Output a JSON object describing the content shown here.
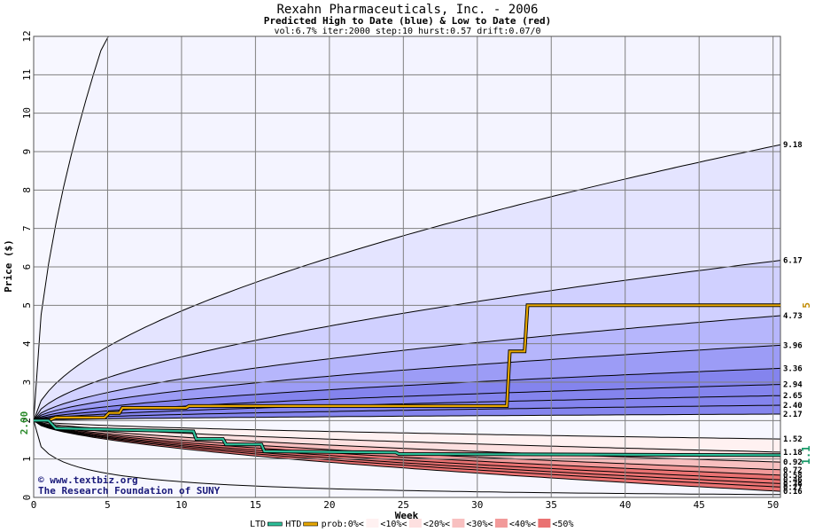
{
  "chart_data": {
    "type": "area",
    "title": "Rexahn Pharmaceuticals, Inc. - 2006",
    "subtitle": "Predicted High to Date (blue) &  Low to Date (red)",
    "params": "vol:6.7% iter:2000 step:10 hurst:0.57 drift:0.07/0",
    "xlabel": "Week",
    "ylabel": "Price ($)",
    "xlim": [
      0,
      50.5
    ],
    "ylim": [
      0,
      12
    ],
    "x_ticks": [
      0,
      5,
      10,
      15,
      20,
      25,
      30,
      35,
      40,
      45,
      50
    ],
    "y_ticks": [
      0,
      1,
      2,
      3,
      4,
      5,
      6,
      7,
      8,
      9,
      10,
      11,
      12
    ],
    "grid": true,
    "start_price": 2.0,
    "start_label": "2.00",
    "htd_current": 5,
    "htd_current_label": "5",
    "ltd_current": 1.1,
    "ltd_current_label": "1.1",
    "watermark": [
      "© www.textbiz.org",
      "The Research Foundation of SUNY"
    ],
    "high_curves": [
      {
        "end": 9.18,
        "label": "9.18"
      },
      {
        "end": 6.17,
        "label": "6.17"
      },
      {
        "end": 4.73,
        "label": "4.73"
      },
      {
        "end": 3.96,
        "label": "3.96"
      },
      {
        "end": 3.36,
        "label": "3.36"
      },
      {
        "end": 2.94,
        "label": "2.94"
      },
      {
        "end": 2.65,
        "label": "2.65"
      },
      {
        "end": 2.4,
        "label": "2.40"
      },
      {
        "end": 2.17,
        "label": "2.17"
      }
    ],
    "low_curves": [
      {
        "end": 1.52,
        "label": "1.52"
      },
      {
        "end": 1.18,
        "label": "1.18"
      },
      {
        "end": 0.92,
        "label": "0.92"
      },
      {
        "end": 0.72,
        "label": "0.72"
      },
      {
        "end": 0.58,
        "label": "0.58"
      },
      {
        "end": 0.46,
        "label": "0.46"
      },
      {
        "end": 0.36,
        "label": "0.36"
      },
      {
        "end": 0.27,
        "label": "0.27"
      },
      {
        "end": 0.16,
        "label": "0.16"
      }
    ],
    "htd_series": {
      "x": [
        0,
        1,
        1.5,
        4.8,
        5.1,
        5.8,
        6.0,
        10.3,
        10.5,
        32,
        32.2,
        33.2,
        33.4,
        50.5
      ],
      "y": [
        2.0,
        2.0,
        2.08,
        2.08,
        2.2,
        2.2,
        2.33,
        2.33,
        2.38,
        2.38,
        3.8,
        3.8,
        5.0,
        5.0
      ]
    },
    "ltd_series": {
      "x": [
        0,
        1,
        1.5,
        10.8,
        11,
        12.8,
        13,
        15.4,
        15.6,
        24.5,
        24.7,
        50.5
      ],
      "y": [
        2.0,
        2.0,
        1.8,
        1.72,
        1.52,
        1.52,
        1.38,
        1.38,
        1.2,
        1.17,
        1.13,
        1.1
      ]
    },
    "legend": {
      "items": [
        "LTD",
        "HTD",
        "prob:0%<",
        "<10%<",
        "<20%<",
        "<30%<",
        "<40%<",
        "<50%"
      ],
      "colors": [
        "#2ec09a",
        "#e8a800",
        "#ffffff",
        "#fff1f1",
        "#fde0e0",
        "#f8c0c0",
        "#f29a9a",
        "#ea7272"
      ],
      "blue_colors": [
        "#f4f4ff",
        "#e4e4ff",
        "#d0d0ff",
        "#b6b6fc",
        "#9c9cf6",
        "#8484ee"
      ]
    },
    "colors": {
      "htd_line": "#e8a800",
      "ltd_line": "#2ec09a",
      "grid": "#7f7f7f",
      "label_blue": "#1a1a7a"
    }
  }
}
